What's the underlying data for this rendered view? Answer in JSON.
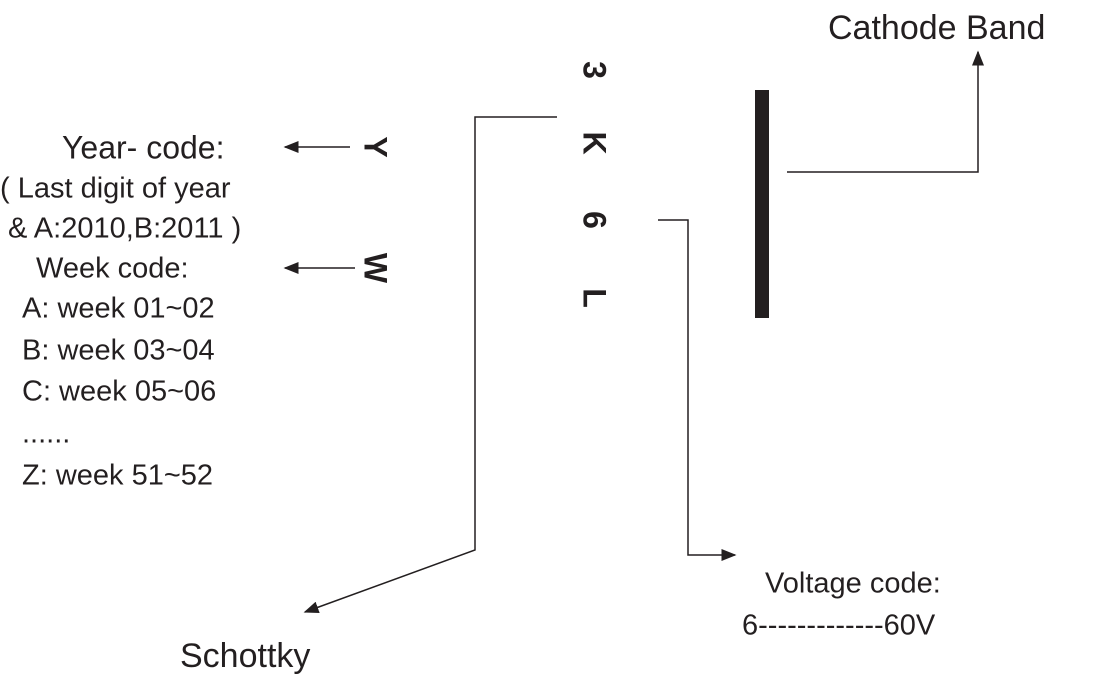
{
  "cathode_label": "Cathode Band",
  "year_code": {
    "letter": "Y",
    "title": "Year- code:",
    "lines": [
      "( Last digit of year",
      "& A:2010,B:2011 )"
    ]
  },
  "week_code": {
    "letter": "W",
    "title": "Week code:",
    "lines": [
      "A: week 01~02",
      "B: week 03~04",
      "C: week 05~06",
      "......",
      "Z: week 51~52"
    ]
  },
  "marking": [
    "3",
    "K",
    "6",
    "L"
  ],
  "voltage_code": {
    "title": "Voltage code:",
    "line": "6-------------60V"
  },
  "schottky_label": "Schottky"
}
